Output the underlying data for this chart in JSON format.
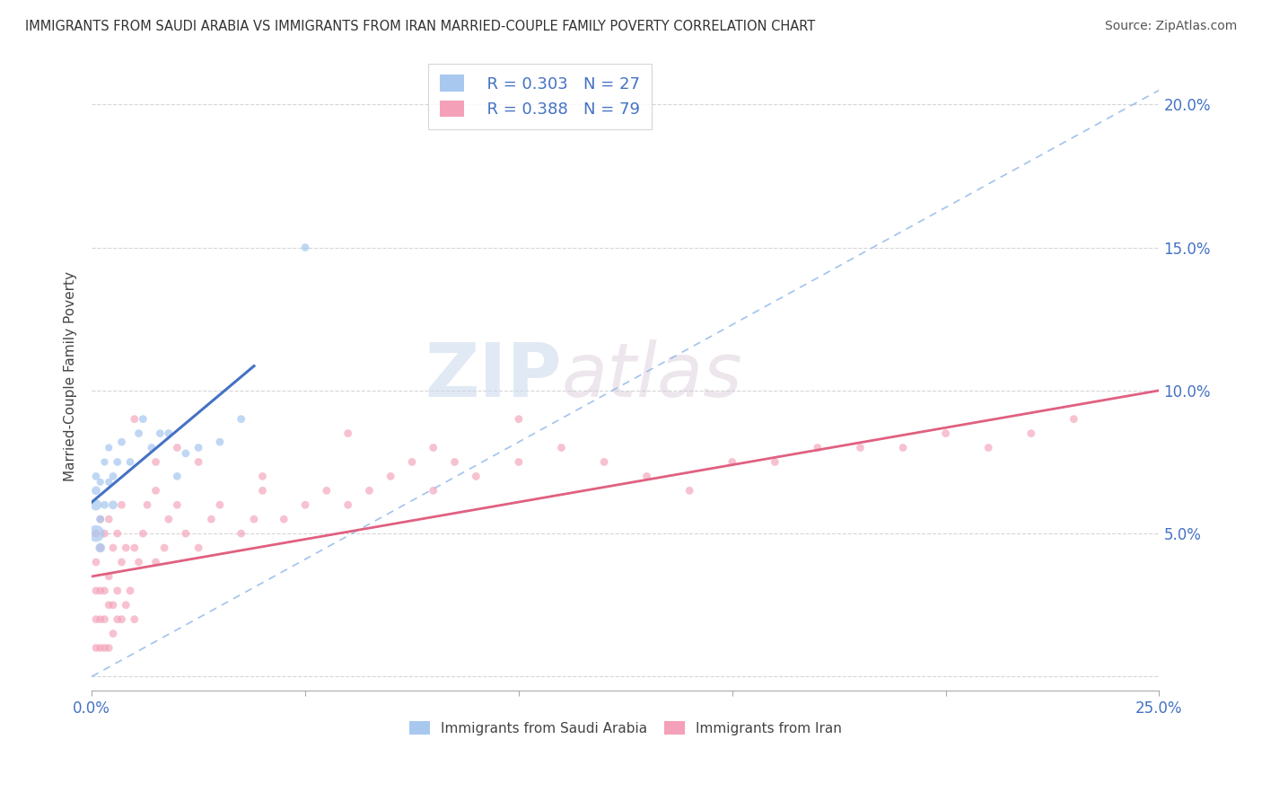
{
  "title": "IMMIGRANTS FROM SAUDI ARABIA VS IMMIGRANTS FROM IRAN MARRIED-COUPLE FAMILY POVERTY CORRELATION CHART",
  "source": "Source: ZipAtlas.com",
  "ylabel": "Married-Couple Family Poverty",
  "xlim": [
    0.0,
    0.25
  ],
  "ylim": [
    -0.005,
    0.215
  ],
  "xticks": [
    0.0,
    0.05,
    0.1,
    0.15,
    0.2,
    0.25
  ],
  "yticks": [
    0.0,
    0.05,
    0.1,
    0.15,
    0.2
  ],
  "watermark_zip": "ZIP",
  "watermark_atlas": "atlas",
  "legend_saudi_r": "R = 0.303",
  "legend_saudi_n": "N = 27",
  "legend_iran_r": "R = 0.388",
  "legend_iran_n": "N = 79",
  "saudi_color": "#a8c8f0",
  "iran_color": "#f4a0b8",
  "saudi_line_color": "#4472c4",
  "iran_line_color": "#e06080",
  "dash_line_color": "#8ab4e8",
  "background_color": "#ffffff",
  "grid_color": "#cccccc",
  "label_color": "#4472c4",
  "saudi_x": [
    0.001,
    0.001,
    0.001,
    0.001,
    0.002,
    0.002,
    0.002,
    0.003,
    0.003,
    0.004,
    0.004,
    0.005,
    0.005,
    0.006,
    0.007,
    0.009,
    0.011,
    0.012,
    0.014,
    0.016,
    0.018,
    0.02,
    0.022,
    0.025,
    0.03,
    0.035,
    0.05
  ],
  "saudi_y": [
    0.05,
    0.06,
    0.065,
    0.07,
    0.045,
    0.055,
    0.068,
    0.06,
    0.075,
    0.068,
    0.08,
    0.06,
    0.07,
    0.075,
    0.082,
    0.075,
    0.085,
    0.09,
    0.08,
    0.085,
    0.085,
    0.07,
    0.078,
    0.08,
    0.082,
    0.09,
    0.15
  ],
  "saudi_sizes": [
    180,
    80,
    50,
    40,
    60,
    40,
    35,
    40,
    35,
    35,
    35,
    50,
    40,
    40,
    40,
    40,
    40,
    40,
    40,
    40,
    40,
    40,
    40,
    40,
    40,
    40,
    40
  ],
  "iran_x": [
    0.001,
    0.001,
    0.001,
    0.001,
    0.001,
    0.002,
    0.002,
    0.002,
    0.002,
    0.002,
    0.003,
    0.003,
    0.003,
    0.003,
    0.004,
    0.004,
    0.004,
    0.004,
    0.005,
    0.005,
    0.005,
    0.006,
    0.006,
    0.006,
    0.007,
    0.007,
    0.007,
    0.008,
    0.008,
    0.009,
    0.01,
    0.01,
    0.011,
    0.012,
    0.013,
    0.015,
    0.015,
    0.017,
    0.018,
    0.02,
    0.022,
    0.025,
    0.028,
    0.03,
    0.035,
    0.038,
    0.04,
    0.045,
    0.05,
    0.055,
    0.06,
    0.065,
    0.07,
    0.075,
    0.08,
    0.085,
    0.09,
    0.1,
    0.11,
    0.12,
    0.13,
    0.14,
    0.15,
    0.16,
    0.17,
    0.18,
    0.19,
    0.2,
    0.21,
    0.22,
    0.23,
    0.01,
    0.015,
    0.02,
    0.025,
    0.04,
    0.06,
    0.08,
    0.1
  ],
  "iran_y": [
    0.01,
    0.02,
    0.03,
    0.04,
    0.05,
    0.01,
    0.02,
    0.03,
    0.045,
    0.055,
    0.01,
    0.02,
    0.03,
    0.05,
    0.01,
    0.025,
    0.035,
    0.055,
    0.015,
    0.025,
    0.045,
    0.02,
    0.03,
    0.05,
    0.02,
    0.04,
    0.06,
    0.025,
    0.045,
    0.03,
    0.02,
    0.045,
    0.04,
    0.05,
    0.06,
    0.04,
    0.065,
    0.045,
    0.055,
    0.06,
    0.05,
    0.045,
    0.055,
    0.06,
    0.05,
    0.055,
    0.065,
    0.055,
    0.06,
    0.065,
    0.06,
    0.065,
    0.07,
    0.075,
    0.065,
    0.075,
    0.07,
    0.075,
    0.08,
    0.075,
    0.07,
    0.065,
    0.075,
    0.075,
    0.08,
    0.08,
    0.08,
    0.085,
    0.08,
    0.085,
    0.09,
    0.09,
    0.075,
    0.08,
    0.075,
    0.07,
    0.085,
    0.08,
    0.09
  ],
  "iran_sizes": [
    40,
    40,
    40,
    40,
    40,
    40,
    40,
    40,
    40,
    40,
    40,
    40,
    40,
    40,
    40,
    40,
    40,
    40,
    40,
    40,
    40,
    40,
    40,
    40,
    40,
    40,
    40,
    40,
    40,
    40,
    40,
    40,
    40,
    40,
    40,
    40,
    40,
    40,
    40,
    40,
    40,
    40,
    40,
    40,
    40,
    40,
    40,
    40,
    40,
    40,
    40,
    40,
    40,
    40,
    40,
    40,
    40,
    40,
    40,
    40,
    40,
    40,
    40,
    40,
    40,
    40,
    40,
    40,
    40,
    40,
    40,
    40,
    40,
    40,
    40,
    40,
    40,
    40,
    40
  ],
  "saudi_line_x": [
    0.0,
    0.038
  ],
  "iran_line_x": [
    0.0,
    0.25
  ],
  "iran_line_y": [
    0.035,
    0.1
  ],
  "dash_line_x": [
    0.0,
    0.25
  ],
  "dash_line_y": [
    0.0,
    0.205
  ]
}
